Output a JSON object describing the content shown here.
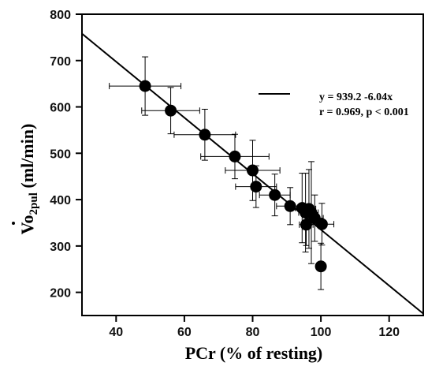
{
  "chart_data": {
    "type": "scatter",
    "title": "",
    "xlabel": "PCr (% of resting)",
    "ylabel_main": "Vo",
    "ylabel_sub": "2pul",
    "ylabel_unit": " (ml/min)",
    "xlim": [
      30,
      130
    ],
    "ylim": [
      150,
      800
    ],
    "x_ticks": [
      "40",
      "60",
      "80",
      "100",
      "120"
    ],
    "x_tick_values": [
      40,
      60,
      80,
      100,
      120
    ],
    "y_ticks": [
      "200",
      "300",
      "400",
      "500",
      "600",
      "700",
      "800"
    ],
    "y_tick_values": [
      200,
      300,
      400,
      500,
      600,
      700,
      800
    ],
    "grid": false,
    "legend_position": "top-right",
    "fit": {
      "label": "y = 939.2 -6.04x",
      "stats": "r = 0.969, p < 0.001",
      "intercept": 939.2,
      "slope": -6.04
    },
    "points": [
      {
        "x": 48.5,
        "y": 645,
        "xerr": 10.5,
        "yerr": 63
      },
      {
        "x": 56,
        "y": 592,
        "xerr": 8.5,
        "yerr": 50
      },
      {
        "x": 66,
        "y": 540,
        "xerr": 9,
        "yerr": 55
      },
      {
        "x": 74.8,
        "y": 493,
        "xerr": 10,
        "yerr": 48
      },
      {
        "x": 80,
        "y": 463,
        "xerr": 8,
        "yerr": 65
      },
      {
        "x": 81,
        "y": 428,
        "xerr": 6,
        "yerr": 45
      },
      {
        "x": 86.5,
        "y": 410,
        "xerr": 4.5,
        "yerr": 45
      },
      {
        "x": 91,
        "y": 386,
        "xerr": 4,
        "yerr": 40
      },
      {
        "x": 94.5,
        "y": 382,
        "xerr": 2,
        "yerr": 75
      },
      {
        "x": 95.5,
        "y": 372,
        "xerr": 2,
        "yerr": 85
      },
      {
        "x": 96.5,
        "y": 380,
        "xerr": 2,
        "yerr": 85
      },
      {
        "x": 95.7,
        "y": 346,
        "xerr": 2,
        "yerr": 45
      },
      {
        "x": 97.2,
        "y": 372,
        "xerr": 2,
        "yerr": 110
      },
      {
        "x": 98.2,
        "y": 360,
        "xerr": 2.5,
        "yerr": 50
      },
      {
        "x": 100.3,
        "y": 347,
        "xerr": 3.5,
        "yerr": 45
      },
      {
        "x": 100,
        "y": 256,
        "xerr": 0.5,
        "yerr": 50
      }
    ]
  }
}
